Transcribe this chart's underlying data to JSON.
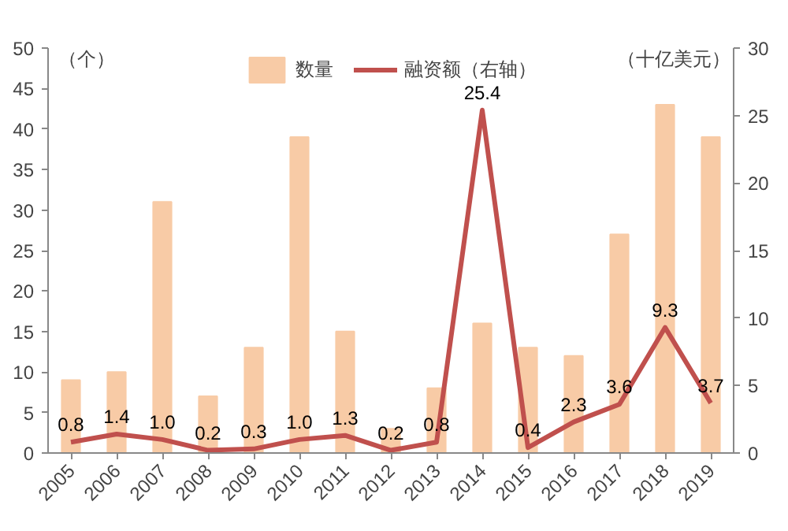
{
  "chart_data": {
    "type": "bar",
    "categories": [
      "2005",
      "2006",
      "2007",
      "2008",
      "2009",
      "2010",
      "2011",
      "2012",
      "2013",
      "2014",
      "2015",
      "2016",
      "2017",
      "2018",
      "2019"
    ],
    "ylabel": "（个）",
    "y2label": "（十亿美元）",
    "series": [
      {
        "name": "数量",
        "color": "#f8cba6",
        "values": [
          9,
          10,
          31,
          7,
          13,
          39,
          15,
          3,
          8,
          16,
          13,
          12,
          27,
          43,
          39
        ]
      },
      {
        "name": "融资额（右轴）",
        "type": "line",
        "axis": "y2",
        "color": "#c0504d",
        "values": [
          0.8,
          1.4,
          1.0,
          0.2,
          0.3,
          1.0,
          1.3,
          0.2,
          0.8,
          25.4,
          0.4,
          2.3,
          3.6,
          9.3,
          3.7
        ],
        "value_labels": [
          "0.8",
          "1.4",
          "1.0",
          "0.2",
          "0.3",
          "1.0",
          "1.3",
          "0.2",
          "0.8",
          "25.4",
          "0.4",
          "2.3",
          "3.6",
          "9.3",
          "3.7"
        ]
      }
    ],
    "ylim": [
      0,
      50
    ],
    "yticks": [
      0,
      5,
      10,
      15,
      20,
      25,
      30,
      35,
      40,
      45,
      50
    ],
    "y2lim": [
      0,
      30
    ],
    "y2ticks": [
      0,
      5,
      10,
      15,
      20,
      25,
      30
    ],
    "grid": false,
    "legend": "top",
    "line_style": "solid",
    "marker": "none"
  }
}
